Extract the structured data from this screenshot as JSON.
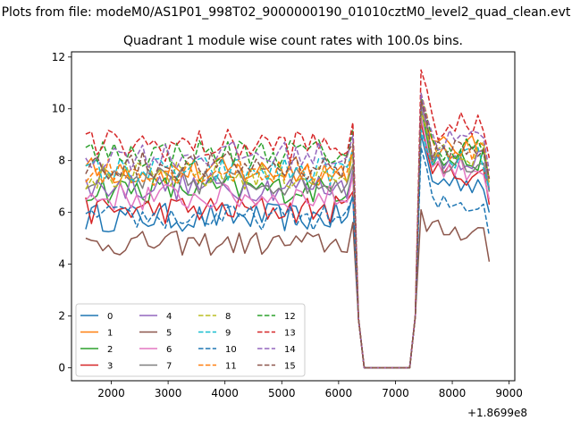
{
  "chart_data": {
    "type": "line",
    "suptitle": "Plots from file: modeM0/AS1P01_998T02_9000000190_01010cztM0_level2_quad_clean.evt",
    "title": "Quadrant 1 module wise count rates with 100.0s bins.",
    "xlabel": "",
    "ylabel": "",
    "x_offset_label": "+1.8699e8",
    "xlim": [
      1300,
      9100
    ],
    "ylim": [
      -0.5,
      12.2
    ],
    "xticks": [
      2000,
      3000,
      4000,
      5000,
      6000,
      7000,
      8000,
      9000
    ],
    "yticks": [
      0,
      2,
      4,
      6,
      8,
      10,
      12
    ],
    "legend_position": "lower-left",
    "series": [
      {
        "name": "0",
        "color": "#1f77b4",
        "dash": "solid",
        "base": 5.8,
        "amp": 0.35,
        "peak": 9.0,
        "tail": 7.2,
        "last": 1.6
      },
      {
        "name": "1",
        "color": "#ff7f0e",
        "dash": "solid",
        "base": 7.6,
        "amp": 0.35,
        "peak": 10.4,
        "tail": 8.5,
        "last": 1.9
      },
      {
        "name": "2",
        "color": "#2ca02c",
        "dash": "solid",
        "base": 6.9,
        "amp": 0.35,
        "peak": 10.0,
        "tail": 8.0,
        "last": 1.8
      },
      {
        "name": "3",
        "color": "#d62728",
        "dash": "solid",
        "base": 6.1,
        "amp": 0.35,
        "peak": 9.5,
        "tail": 7.5,
        "last": 1.7
      },
      {
        "name": "4",
        "color": "#9467bd",
        "dash": "solid",
        "base": 7.0,
        "amp": 0.35,
        "peak": 10.2,
        "tail": 8.1,
        "last": 1.8
      },
      {
        "name": "5",
        "color": "#8c564b",
        "dash": "solid",
        "base": 4.8,
        "amp": 0.3,
        "peak": 6.1,
        "tail": 5.3,
        "last": 1.4
      },
      {
        "name": "6",
        "color": "#e377c2",
        "dash": "solid",
        "base": 6.6,
        "amp": 0.35,
        "peak": 9.7,
        "tail": 7.7,
        "last": 1.7
      },
      {
        "name": "7",
        "color": "#7f7f7f",
        "dash": "solid",
        "base": 7.2,
        "amp": 0.35,
        "peak": 10.0,
        "tail": 8.0,
        "last": 1.8
      },
      {
        "name": "8",
        "color": "#bcbd22",
        "dash": "dashed",
        "base": 7.4,
        "amp": 0.35,
        "peak": 9.9,
        "tail": 8.3,
        "last": 1.9
      },
      {
        "name": "9",
        "color": "#17becf",
        "dash": "dashed",
        "base": 7.6,
        "amp": 0.35,
        "peak": 9.2,
        "tail": 8.1,
        "last": 1.9
      },
      {
        "name": "10",
        "color": "#1f77b4",
        "dash": "dashed",
        "base": 5.8,
        "amp": 0.3,
        "peak": 8.5,
        "tail": 6.3,
        "last": 1.6
      },
      {
        "name": "11",
        "color": "#ff7f0e",
        "dash": "dashed",
        "base": 7.6,
        "amp": 0.35,
        "peak": 10.6,
        "tail": 8.5,
        "last": 1.9
      },
      {
        "name": "12",
        "color": "#2ca02c",
        "dash": "dashed",
        "base": 8.3,
        "amp": 0.35,
        "peak": 10.5,
        "tail": 8.5,
        "last": 2.0
      },
      {
        "name": "13",
        "color": "#d62728",
        "dash": "dashed",
        "base": 8.6,
        "amp": 0.4,
        "peak": 11.5,
        "tail": 9.3,
        "last": 2.1
      },
      {
        "name": "14",
        "color": "#9467bd",
        "dash": "dashed",
        "base": 8.2,
        "amp": 0.35,
        "peak": 10.6,
        "tail": 8.8,
        "last": 2.0
      },
      {
        "name": "15",
        "color": "#8c564b",
        "dash": "dashed",
        "base": 7.8,
        "amp": 0.35,
        "peak": 10.3,
        "tail": 8.5,
        "last": 1.9
      }
    ]
  }
}
